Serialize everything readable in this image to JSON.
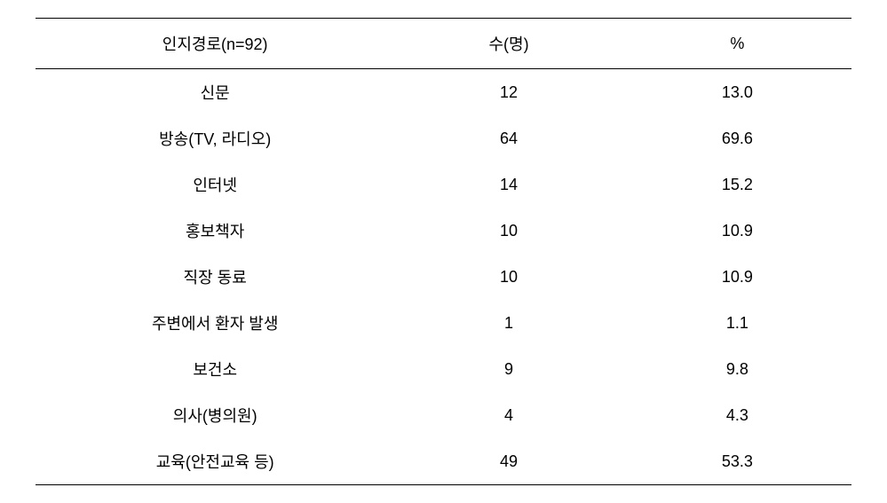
{
  "table": {
    "columns": [
      {
        "key": "label",
        "header": "인지경로(n=92)"
      },
      {
        "key": "count",
        "header": "수(명)"
      },
      {
        "key": "percent",
        "header": "%"
      }
    ],
    "rows": [
      {
        "label": "신문",
        "count": "12",
        "percent": "13.0"
      },
      {
        "label": "방송(TV, 라디오)",
        "count": "64",
        "percent": "69.6"
      },
      {
        "label": "인터넷",
        "count": "14",
        "percent": "15.2"
      },
      {
        "label": "홍보책자",
        "count": "10",
        "percent": "10.9"
      },
      {
        "label": "직장 동료",
        "count": "10",
        "percent": "10.9"
      },
      {
        "label": "주변에서 환자 발생",
        "count": "1",
        "percent": "1.1"
      },
      {
        "label": "보건소",
        "count": "9",
        "percent": "9.8"
      },
      {
        "label": "의사(병의원)",
        "count": "4",
        "percent": "4.3"
      },
      {
        "label": "교육(안전교육 등)",
        "count": "49",
        "percent": "53.3"
      }
    ],
    "styling": {
      "font_size": 18,
      "text_color": "#000000",
      "background_color": "#ffffff",
      "border_color": "#000000",
      "border_width": 1,
      "row_padding_vertical": 13,
      "header_padding_vertical": 15,
      "column_widths_percent": [
        44,
        28,
        28
      ],
      "text_align": "center"
    }
  }
}
